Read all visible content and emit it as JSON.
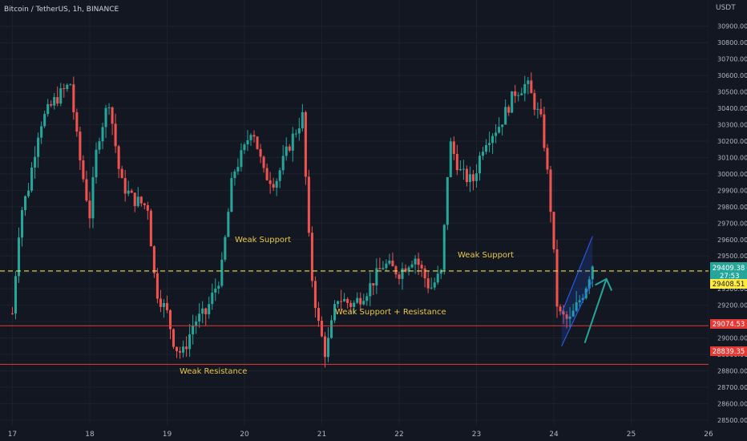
{
  "header": {
    "symbol": "Bitcoin / TetherUS, 1h, BINANCE"
  },
  "price_axis": {
    "unit": "USDT"
  },
  "price_tags": {
    "current_price": "29409.38",
    "countdown": "27:53",
    "dashed_level": "29408.51",
    "support_1": "29074.53",
    "support_2": "28839.35"
  },
  "annotations": {
    "weak_support_1": "Weak Support",
    "weak_support_2": "Weak Support",
    "weak_support_resistance": "Weak Support + Resistance",
    "weak_resistance": "Weak Resistance"
  },
  "colors": {
    "background": "#131722",
    "up": "#26a69a",
    "down": "#ef5350",
    "dashed": "#e6e24a",
    "hline": "#e53935",
    "text": "#b2b5be",
    "annotation": "#e6c84a",
    "arrow": "#26a69a",
    "channel": "#2962ff"
  },
  "chart_data": {
    "type": "candlestick",
    "timeframe": "1h",
    "x_ticks": [
      "17",
      "18",
      "19",
      "20",
      "21",
      "22",
      "23",
      "24",
      "25",
      "26"
    ],
    "y_ticks": [
      28500,
      28600,
      28700,
      28800,
      28900,
      29000,
      29100,
      29200,
      29300,
      29400,
      29500,
      29600,
      29700,
      29800,
      29900,
      30000,
      30100,
      30200,
      30300,
      30400,
      30500,
      30600,
      30700,
      30800,
      30900
    ],
    "ylim": [
      28470,
      31060
    ],
    "xlim": [
      -0.16,
      9.0
    ],
    "close_path": [
      [
        0.0,
        29150
      ],
      [
        0.1,
        29750
      ],
      [
        0.2,
        29900
      ],
      [
        0.35,
        30300
      ],
      [
        0.55,
        30450
      ],
      [
        0.75,
        30550
      ],
      [
        0.85,
        30150
      ],
      [
        1.0,
        29750
      ],
      [
        1.1,
        30200
      ],
      [
        1.25,
        30450
      ],
      [
        1.4,
        29950
      ],
      [
        1.55,
        29850
      ],
      [
        1.75,
        29800
      ],
      [
        1.85,
        29300
      ],
      [
        2.0,
        29150
      ],
      [
        2.1,
        28950
      ],
      [
        2.2,
        28900
      ],
      [
        2.35,
        29100
      ],
      [
        2.5,
        29150
      ],
      [
        2.7,
        29400
      ],
      [
        2.85,
        30000
      ],
      [
        3.0,
        30150
      ],
      [
        3.1,
        30300
      ],
      [
        3.25,
        30000
      ],
      [
        3.4,
        29950
      ],
      [
        3.6,
        30200
      ],
      [
        3.75,
        30350
      ],
      [
        3.85,
        29450
      ],
      [
        3.95,
        29100
      ],
      [
        4.05,
        28900
      ],
      [
        4.2,
        29250
      ],
      [
        4.4,
        29200
      ],
      [
        4.6,
        29300
      ],
      [
        4.8,
        29450
      ],
      [
        5.0,
        29400
      ],
      [
        5.2,
        29500
      ],
      [
        5.4,
        29300
      ],
      [
        5.55,
        29400
      ],
      [
        5.65,
        30200
      ],
      [
        5.8,
        30000
      ],
      [
        5.95,
        29950
      ],
      [
        6.1,
        30200
      ],
      [
        6.3,
        30300
      ],
      [
        6.5,
        30500
      ],
      [
        6.65,
        30550
      ],
      [
        6.85,
        30300
      ],
      [
        6.95,
        29850
      ],
      [
        7.05,
        29150
      ],
      [
        7.2,
        29100
      ],
      [
        7.4,
        29300
      ],
      [
        7.5,
        29450
      ]
    ],
    "horizontal_lines": [
      {
        "price": 29408.51,
        "style": "dashed"
      },
      {
        "price": 29074.53,
        "style": "solid"
      },
      {
        "price": 28839.35,
        "style": "solid"
      }
    ],
    "channel": {
      "x_start": 7.1,
      "x_end": 7.5,
      "lower_start": 28950,
      "lower_end": 29350,
      "upper_start": 29150,
      "upper_end": 29620
    },
    "arrow": {
      "from": [
        7.4,
        28970
      ],
      "to": [
        7.68,
        29360
      ]
    }
  }
}
